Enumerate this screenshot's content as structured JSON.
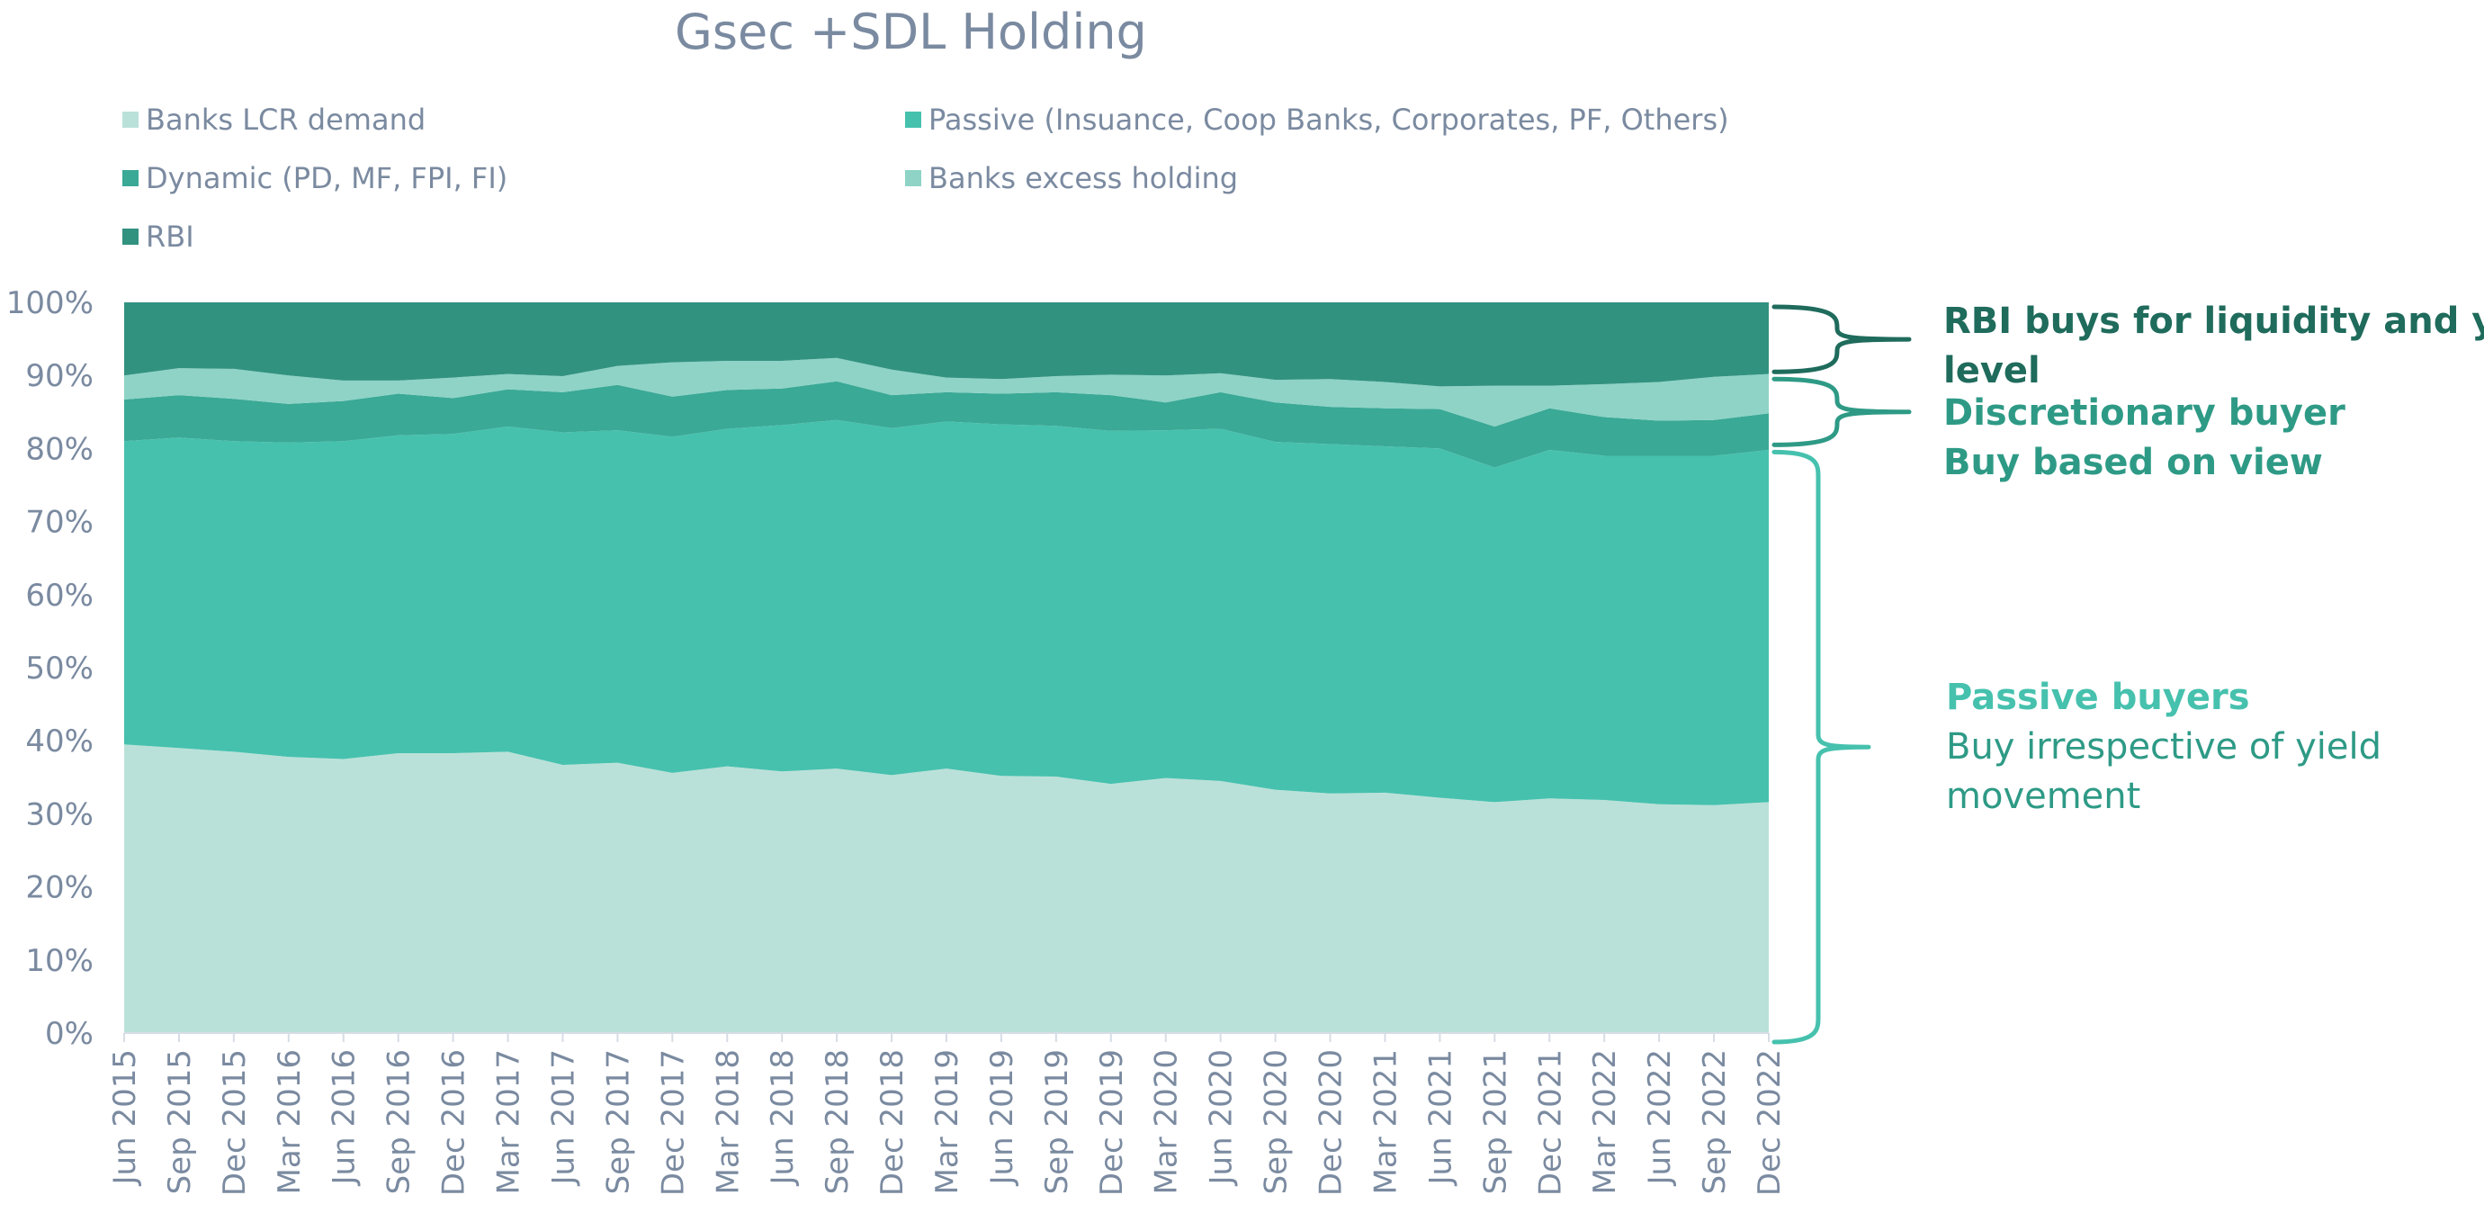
{
  "chart_data": {
    "type": "area",
    "stacked": true,
    "title": "Gsec +SDL Holding",
    "xlabel": "",
    "ylabel": "",
    "ylim": [
      0,
      100
    ],
    "yticks": [
      "0%",
      "10%",
      "20%",
      "30%",
      "40%",
      "50%",
      "60%",
      "70%",
      "80%",
      "90%",
      "100%"
    ],
    "categories": [
      "Jun 2015",
      "Sep 2015",
      "Dec 2015",
      "Mar 2016",
      "Jun 2016",
      "Sep 2016",
      "Dec 2016",
      "Mar 2017",
      "Jun 2017",
      "Sep 2017",
      "Dec 2017",
      "Mar 2018",
      "Jun 2018",
      "Sep 2018",
      "Dec 2018",
      "Mar 2019",
      "Jun 2019",
      "Sep 2019",
      "Dec 2019",
      "Mar 2020",
      "Jun 2020",
      "Sep 2020",
      "Dec 2020",
      "Mar 2021",
      "Jun 2021",
      "Sep 2021",
      "Dec 2021",
      "Mar 2022",
      "Jun 2022",
      "Sep 2022",
      "Dec 2022"
    ],
    "legend_position": "top",
    "grid": false,
    "series": [
      {
        "name": "Banks LCR demand",
        "color": "#bae1d9",
        "values": [
          39.5,
          39,
          38.5,
          37.8,
          37.5,
          38.3,
          38.3,
          38.5,
          36.7,
          37,
          35.6,
          36.5,
          35.8,
          36.2,
          35.3,
          36.2,
          35.2,
          35.1,
          34.1,
          34.9,
          34.5,
          33.3,
          32.8,
          32.9,
          32.2,
          31.6,
          32.1,
          31.9,
          31.3,
          31.2,
          31.6
        ]
      },
      {
        "name": "Passive (Insuance, Coop Banks, Corporates, PF, Others)",
        "color": "#46c1ae",
        "values": [
          41.5,
          42.5,
          42.5,
          43,
          43.5,
          43.5,
          43.7,
          44.5,
          45.5,
          45.5,
          46,
          46.2,
          47.4,
          47.7,
          47.5,
          47.5,
          48.1,
          48,
          48.3,
          47.6,
          48.2,
          47.6,
          47.8,
          47.4,
          47.8,
          45.8,
          47.7,
          47.1,
          47.7,
          47.8,
          48.2
        ]
      },
      {
        "name": "Dynamic (PD, MF, FPI, FI)",
        "color": "#3aa996",
        "values": [
          5.7,
          5.8,
          5.8,
          5.3,
          5.5,
          5.7,
          4.9,
          5.1,
          5.5,
          6.2,
          5.5,
          5.3,
          5,
          5.3,
          4.5,
          4,
          4.2,
          4.6,
          4.9,
          3.8,
          5,
          5.4,
          5.1,
          5.2,
          5.4,
          5.6,
          5.7,
          5.3,
          4.8,
          4.9,
          5
        ]
      },
      {
        "name": "Banks excess holding",
        "color": "#8ed3c6",
        "values": [
          3.3,
          3.7,
          4.1,
          3.9,
          2.8,
          1.8,
          2.8,
          2.1,
          2.2,
          2.6,
          4.7,
          4,
          3.8,
          3.2,
          3.5,
          2,
          2,
          2.2,
          2.8,
          3.7,
          2.6,
          3.1,
          3.8,
          3.6,
          3.1,
          5.6,
          3.1,
          4.5,
          5.3,
          5.9,
          5.4
        ]
      },
      {
        "name": "RBI",
        "color": "#329280",
        "values": [
          10,
          9,
          9.1,
          10,
          10.7,
          10.7,
          10.3,
          9.8,
          10.1,
          8.7,
          8.2,
          8,
          8,
          7.6,
          9.2,
          10.3,
          10.5,
          10.1,
          9.9,
          10,
          9.7,
          10.6,
          10.5,
          10.9,
          11.5,
          11.4,
          11.4,
          11.2,
          10.9,
          10.2,
          9.8
        ]
      }
    ],
    "annotations": [
      {
        "lines": [
          "RBI buys for liquidity and yield",
          "level"
        ],
        "color": "#1f6b5c",
        "range": [
          90,
          100
        ]
      },
      {
        "lines": [
          "Discretionary buyer",
          "Buy based on view"
        ],
        "color": "#2e9a86",
        "range": [
          80,
          90
        ]
      },
      {
        "lines": [
          "Passive buyers",
          "Buy irrespective of yield",
          "movement"
        ],
        "color": "#46c1ae",
        "text_color": "#2e9a86",
        "range": [
          0,
          80
        ]
      }
    ]
  }
}
